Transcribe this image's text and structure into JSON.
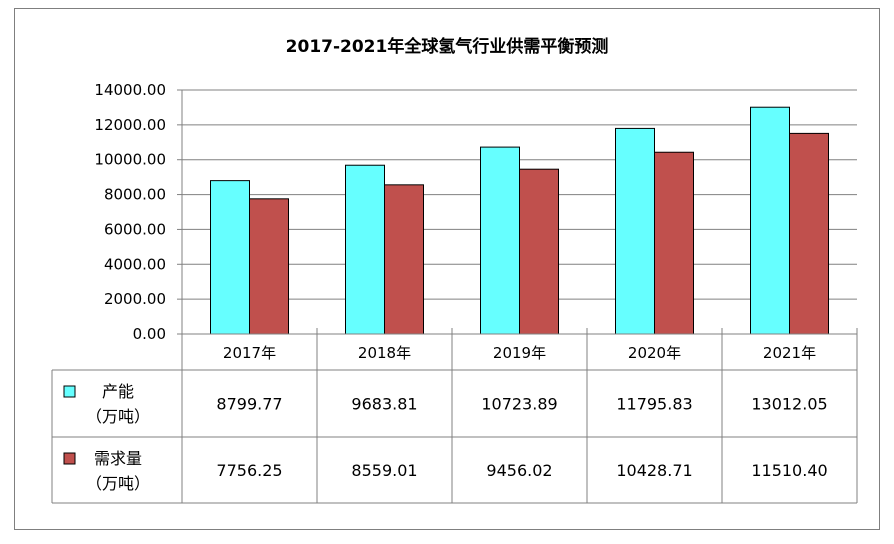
{
  "chart_data": {
    "type": "bar",
    "title": "2017-2021年全球氢气行业供需平衡预测",
    "categories": [
      "2017年",
      "2018年",
      "2019年",
      "2020年",
      "2021年"
    ],
    "series": [
      {
        "name": "产能",
        "unit": "（万吨）",
        "color": "#66ffff",
        "values": [
          "8799.77",
          "9683.81",
          "10723.89",
          "11795.83",
          "13012.05"
        ]
      },
      {
        "name": "需求量",
        "unit": "（万吨）",
        "color": "#c0504d",
        "values": [
          "7756.25",
          "8559.01",
          "9456.02",
          "10428.71",
          "11510.40"
        ]
      }
    ],
    "yticks": [
      "0.00",
      "2000.00",
      "4000.00",
      "6000.00",
      "8000.00",
      "10000.00",
      "12000.00",
      "14000.00"
    ],
    "ylim": [
      0,
      14000
    ],
    "grid": true,
    "legend": "data-table"
  }
}
